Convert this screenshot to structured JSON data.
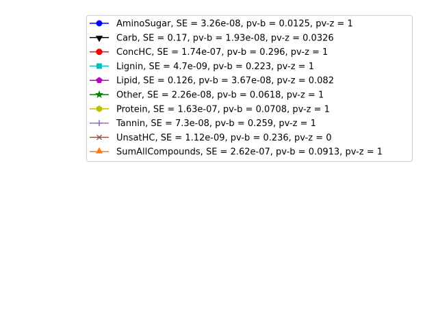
{
  "chart_data": {
    "type": "line",
    "title": "",
    "xlabel": "",
    "ylabel": "",
    "axes_visible": false,
    "legend_placement": "upper-right",
    "series": [
      {
        "label": "AminoSugar,  SE = 3.26e-08,  pv-b = 0.0125,  pv-z = 1",
        "color": "#0000ff",
        "marker": "circle"
      },
      {
        "label": "Carb,  SE = 0.17,  pv-b = 1.93e-08,  pv-z = 0.0326",
        "color": "#000000",
        "marker": "triangle-down"
      },
      {
        "label": "ConcHC,  SE = 1.74e-07,  pv-b = 0.296,  pv-z = 1",
        "color": "#ff0000",
        "marker": "octagon"
      },
      {
        "label": "Lignin,  SE = 4.7e-09,  pv-b = 0.223,  pv-z = 1",
        "color": "#00bfbf",
        "marker": "square"
      },
      {
        "label": "Lipid,  SE = 0.126,  pv-b = 3.67e-08,  pv-z = 0.082",
        "color": "#bf00bf",
        "marker": "pentagon"
      },
      {
        "label": "Other,  SE = 2.26e-08,  pv-b = 0.0618,  pv-z = 1",
        "color": "#008000",
        "marker": "star"
      },
      {
        "label": "Protein,  SE = 1.63e-07,  pv-b = 0.0708,  pv-z = 1",
        "color": "#bfbf00",
        "marker": "hexagon"
      },
      {
        "label": "Tannin,  SE = 7.3e-08,  pv-b = 0.259,  pv-z = 1",
        "color": "#9467bd",
        "marker": "plus"
      },
      {
        "label": "UnsatHC,  SE = 1.12e-09,  pv-b = 0.236,  pv-z = 0",
        "color": "#8c564b",
        "marker": "x"
      },
      {
        "label": "SumAllCompounds,  SE = 2.62e-07,  pv-b = 0.0913,  pv-z = 1",
        "color": "#ff7f0e",
        "marker": "triangle-up"
      }
    ]
  }
}
